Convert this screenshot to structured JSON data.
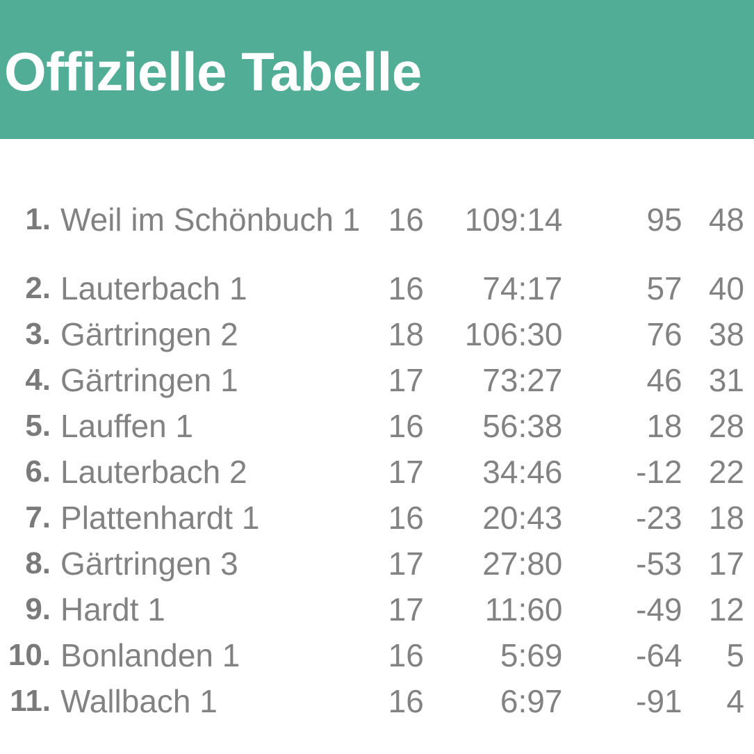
{
  "header": {
    "title": "Offizielle Tabelle",
    "background_color": "#52ad96"
  },
  "table": {
    "rows": [
      {
        "rank": "1.",
        "team": "Weil im Schönbuch 1",
        "games": "16",
        "goals": "109:14",
        "diff": "95",
        "points": "48"
      },
      {
        "rank": "2.",
        "team": "Lauterbach 1",
        "games": "16",
        "goals": "74:17",
        "diff": "57",
        "points": "40"
      },
      {
        "rank": "3.",
        "team": "Gärtringen 2",
        "games": "18",
        "goals": "106:30",
        "diff": "76",
        "points": "38"
      },
      {
        "rank": "4.",
        "team": "Gärtringen 1",
        "games": "17",
        "goals": "73:27",
        "diff": "46",
        "points": "31"
      },
      {
        "rank": "5.",
        "team": "Lauffen 1",
        "games": "16",
        "goals": "56:38",
        "diff": "18",
        "points": "28"
      },
      {
        "rank": "6.",
        "team": "Lauterbach 2",
        "games": "17",
        "goals": "34:46",
        "diff": "-12",
        "points": "22"
      },
      {
        "rank": "7.",
        "team": "Plattenhardt 1",
        "games": "16",
        "goals": "20:43",
        "diff": "-23",
        "points": "18"
      },
      {
        "rank": "8.",
        "team": "Gärtringen 3",
        "games": "17",
        "goals": "27:80",
        "diff": "-53",
        "points": "17"
      },
      {
        "rank": "9.",
        "team": "Hardt 1",
        "games": "17",
        "goals": "11:60",
        "diff": "-49",
        "points": "12"
      },
      {
        "rank": "10.",
        "team": "Bonlanden 1",
        "games": "16",
        "goals": "5:69",
        "diff": "-64",
        "points": "5"
      },
      {
        "rank": "11.",
        "team": "Wallbach 1",
        "games": "16",
        "goals": "6:97",
        "diff": "-91",
        "points": "4"
      }
    ]
  }
}
